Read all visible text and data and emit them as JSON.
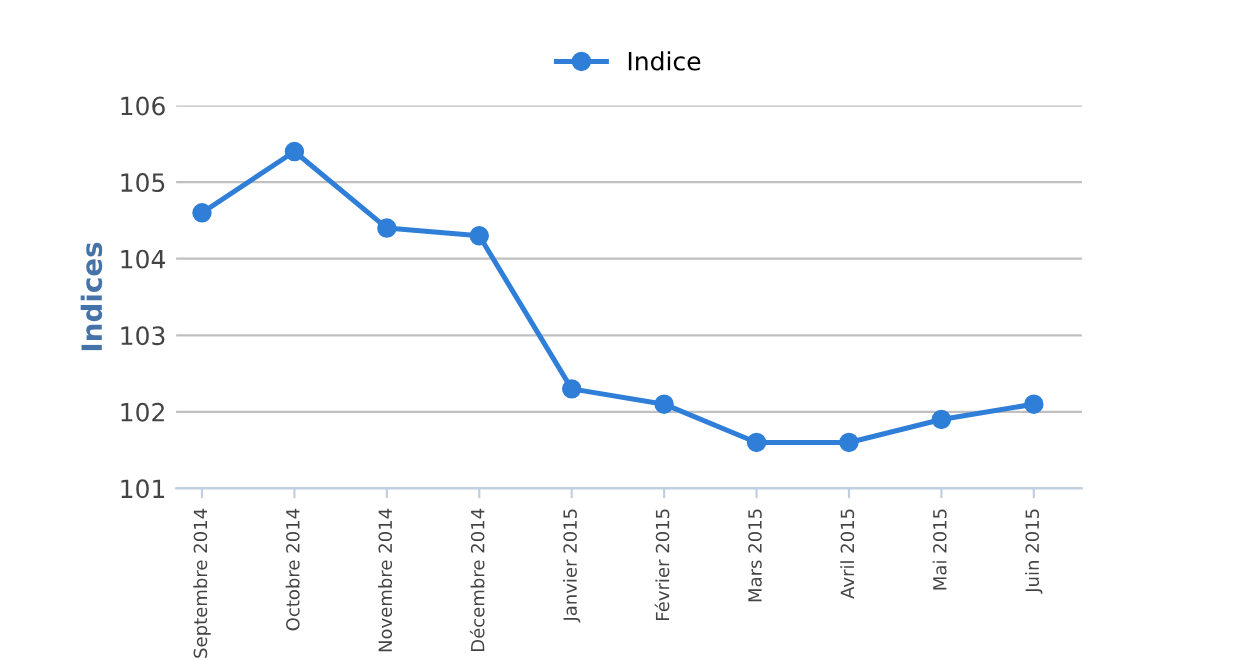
{
  "chart_data": {
    "type": "line",
    "ylabel": "Indices",
    "categories": [
      "Septembre 2014",
      "Octobre 2014",
      "Novembre 2014",
      "Décembre 2014",
      "Janvier 2015",
      "Février 2015",
      "Mars 2015",
      "Avril 2015",
      "Mai 2015",
      "Juin 2015"
    ],
    "series": [
      {
        "name": "Indice",
        "color": "#2f7ed8",
        "values": [
          104.6,
          105.4,
          104.4,
          104.3,
          102.3,
          102.1,
          101.6,
          101.6,
          101.9,
          102.1
        ]
      }
    ],
    "ylim": [
      101,
      106
    ],
    "yticks": [
      101,
      102,
      103,
      104,
      105,
      106
    ],
    "grid": "y",
    "legend": "top",
    "marker": "circle",
    "line_style": "solid"
  }
}
